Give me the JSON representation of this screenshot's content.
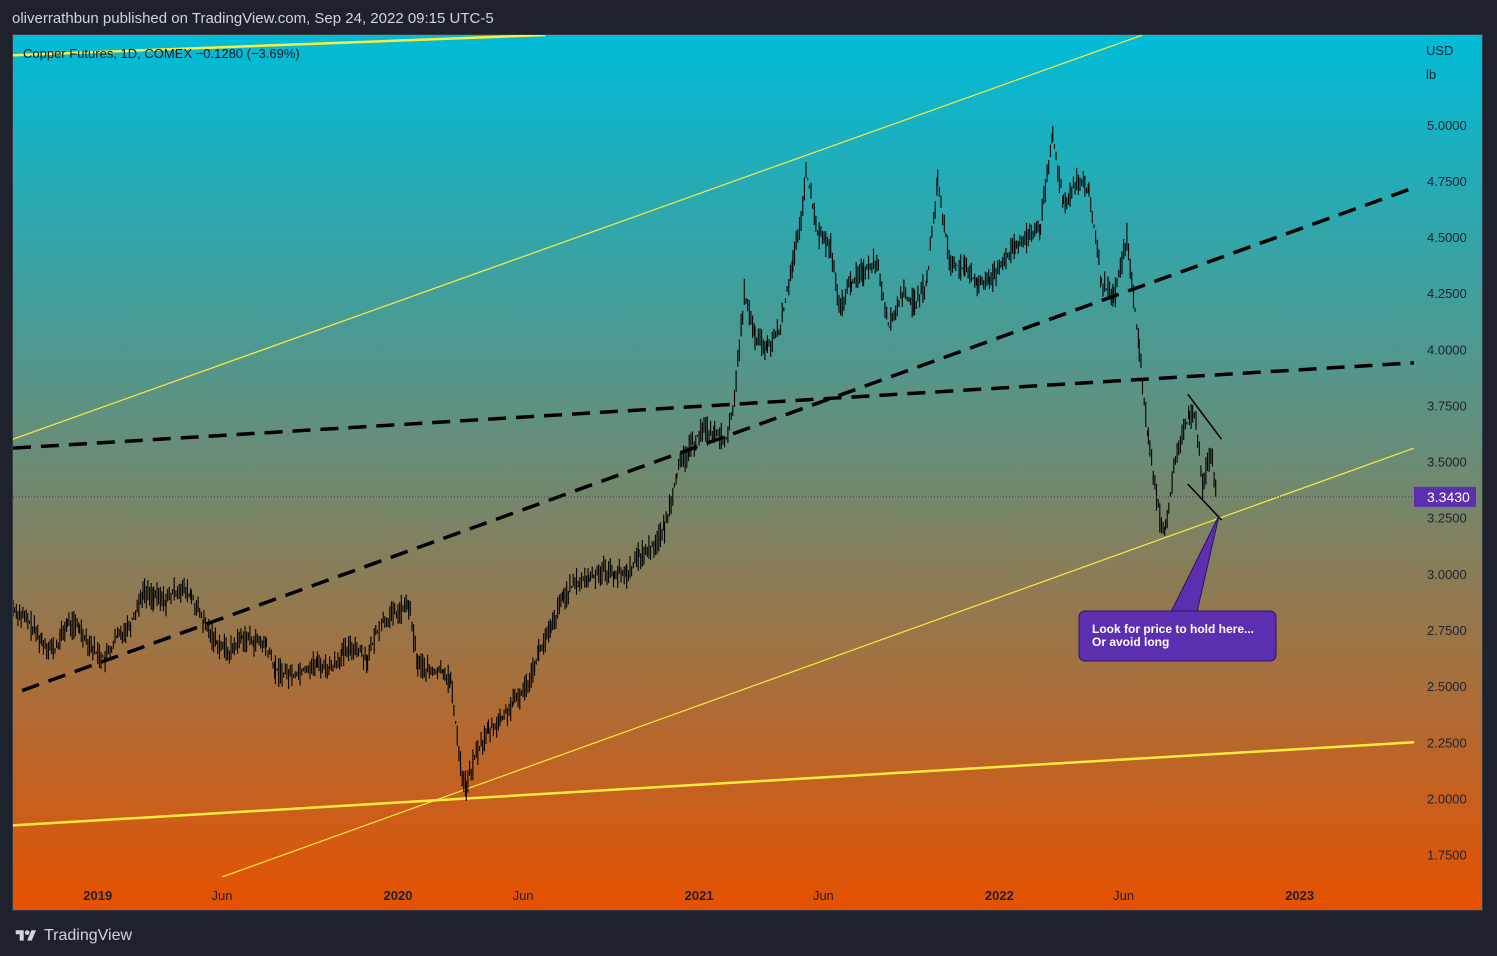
{
  "header": {
    "published_text": "oliverrathbun published on TradingView.com, Sep 24, 2022 09:15 UTC-5"
  },
  "symbol": {
    "info": "Copper Futures, 1D, COMEX  −0.1280 (−3.69%)"
  },
  "footer": {
    "brand": "TradingView",
    "logo_icon": "tradingview-logo-icon"
  },
  "colors": {
    "gradient_top": "#00bcd8",
    "gradient_middle": "#6e8a72",
    "gradient_bottom": "#e65100",
    "trendline_yellow": "#ffeb3b",
    "dashed_line": "#000000",
    "price_label_bg": "#5b2fb0",
    "callout_bg": "#5b2fb0",
    "price_series": "#000000"
  },
  "chart_data": {
    "type": "line",
    "title": "Copper Futures, 1D, COMEX",
    "currency": "USD",
    "unit": "lb",
    "last_price": 3.343,
    "last_price_label": "3.3430",
    "change": "−0.1280 (−3.69%)",
    "ylim": [
      1.65,
      5.4
    ],
    "y_ticks": [
      1.75,
      2.0,
      2.25,
      2.5,
      2.75,
      3.0,
      3.25,
      3.5,
      3.75,
      4.0,
      4.25,
      4.5,
      4.75,
      5.0
    ],
    "y_tick_labels": [
      "1.7500",
      "2.0000",
      "2.2500",
      "2.5000",
      "2.7500",
      "3.0000",
      "3.2500",
      "3.5000",
      "3.7500",
      "4.0000",
      "4.2500",
      "4.5000",
      "4.7500",
      "5.0000"
    ],
    "xlim": [
      "2018-09-20",
      "2023-05-20"
    ],
    "x_ticks": [
      {
        "date": "2019-01-01",
        "label": "2019",
        "bold": true
      },
      {
        "date": "2019-06-01",
        "label": "Jun",
        "bold": false
      },
      {
        "date": "2020-01-01",
        "label": "2020",
        "bold": true
      },
      {
        "date": "2020-06-01",
        "label": "Jun",
        "bold": false
      },
      {
        "date": "2021-01-01",
        "label": "2021",
        "bold": true
      },
      {
        "date": "2021-06-01",
        "label": "Jun",
        "bold": false
      },
      {
        "date": "2022-01-01",
        "label": "2022",
        "bold": true
      },
      {
        "date": "2022-06-01",
        "label": "Jun",
        "bold": false
      },
      {
        "date": "2023-01-01",
        "label": "2023",
        "bold": true
      }
    ],
    "series": [
      {
        "points": [
          [
            "2018-09-20",
            2.85
          ],
          [
            "2018-10-10",
            2.78
          ],
          [
            "2018-10-25",
            2.7
          ],
          [
            "2018-11-10",
            2.66
          ],
          [
            "2018-11-25",
            2.78
          ],
          [
            "2018-12-10",
            2.76
          ],
          [
            "2018-12-28",
            2.66
          ],
          [
            "2019-01-10",
            2.62
          ],
          [
            "2019-01-25",
            2.72
          ],
          [
            "2019-02-10",
            2.78
          ],
          [
            "2019-02-25",
            2.92
          ],
          [
            "2019-03-10",
            2.9
          ],
          [
            "2019-03-25",
            2.88
          ],
          [
            "2019-04-10",
            2.94
          ],
          [
            "2019-04-25",
            2.9
          ],
          [
            "2019-05-10",
            2.78
          ],
          [
            "2019-05-25",
            2.7
          ],
          [
            "2019-06-10",
            2.65
          ],
          [
            "2019-06-25",
            2.72
          ],
          [
            "2019-07-10",
            2.7
          ],
          [
            "2019-07-25",
            2.68
          ],
          [
            "2019-08-05",
            2.57
          ],
          [
            "2019-08-25",
            2.55
          ],
          [
            "2019-09-10",
            2.58
          ],
          [
            "2019-09-25",
            2.6
          ],
          [
            "2019-10-10",
            2.58
          ],
          [
            "2019-10-25",
            2.64
          ],
          [
            "2019-11-10",
            2.68
          ],
          [
            "2019-11-25",
            2.62
          ],
          [
            "2019-12-10",
            2.78
          ],
          [
            "2019-12-28",
            2.82
          ],
          [
            "2020-01-14",
            2.86
          ],
          [
            "2020-01-25",
            2.6
          ],
          [
            "2020-02-10",
            2.56
          ],
          [
            "2020-02-25",
            2.57
          ],
          [
            "2020-03-05",
            2.52
          ],
          [
            "2020-03-19",
            2.1
          ],
          [
            "2020-03-24",
            2.05
          ],
          [
            "2020-04-05",
            2.2
          ],
          [
            "2020-04-20",
            2.3
          ],
          [
            "2020-05-05",
            2.35
          ],
          [
            "2020-05-20",
            2.42
          ],
          [
            "2020-06-05",
            2.5
          ],
          [
            "2020-06-20",
            2.65
          ],
          [
            "2020-07-05",
            2.75
          ],
          [
            "2020-07-20",
            2.9
          ],
          [
            "2020-08-05",
            2.96
          ],
          [
            "2020-08-20",
            2.98
          ],
          [
            "2020-09-05",
            3.02
          ],
          [
            "2020-09-20",
            3.0
          ],
          [
            "2020-10-05",
            3.0
          ],
          [
            "2020-10-20",
            3.08
          ],
          [
            "2020-11-05",
            3.12
          ],
          [
            "2020-11-20",
            3.2
          ],
          [
            "2020-12-05",
            3.45
          ],
          [
            "2020-12-20",
            3.55
          ],
          [
            "2021-01-05",
            3.65
          ],
          [
            "2021-01-20",
            3.62
          ],
          [
            "2021-02-05",
            3.6
          ],
          [
            "2021-02-15",
            3.85
          ],
          [
            "2021-02-25",
            4.25
          ],
          [
            "2021-03-10",
            4.05
          ],
          [
            "2021-03-25",
            4.0
          ],
          [
            "2021-04-10",
            4.1
          ],
          [
            "2021-04-25",
            4.4
          ],
          [
            "2021-05-05",
            4.55
          ],
          [
            "2021-05-11",
            4.8
          ],
          [
            "2021-05-25",
            4.52
          ],
          [
            "2021-06-10",
            4.45
          ],
          [
            "2021-06-20",
            4.18
          ],
          [
            "2021-07-05",
            4.3
          ],
          [
            "2021-07-20",
            4.35
          ],
          [
            "2021-08-05",
            4.4
          ],
          [
            "2021-08-20",
            4.1
          ],
          [
            "2021-09-05",
            4.25
          ],
          [
            "2021-09-20",
            4.2
          ],
          [
            "2021-10-05",
            4.3
          ],
          [
            "2021-10-18",
            4.75
          ],
          [
            "2021-11-01",
            4.4
          ],
          [
            "2021-11-20",
            4.35
          ],
          [
            "2021-12-05",
            4.3
          ],
          [
            "2021-12-20",
            4.3
          ],
          [
            "2022-01-05",
            4.4
          ],
          [
            "2022-01-20",
            4.45
          ],
          [
            "2022-02-05",
            4.5
          ],
          [
            "2022-02-20",
            4.55
          ],
          [
            "2022-03-07",
            4.95
          ],
          [
            "2022-03-20",
            4.65
          ],
          [
            "2022-04-05",
            4.75
          ],
          [
            "2022-04-20",
            4.7
          ],
          [
            "2022-05-05",
            4.3
          ],
          [
            "2022-05-20",
            4.22
          ],
          [
            "2022-06-05",
            4.5
          ],
          [
            "2022-06-20",
            4.0
          ],
          [
            "2022-07-01",
            3.6
          ],
          [
            "2022-07-15",
            3.25
          ],
          [
            "2022-07-22",
            3.2
          ],
          [
            "2022-08-05",
            3.55
          ],
          [
            "2022-08-20",
            3.7
          ],
          [
            "2022-08-26",
            3.72
          ],
          [
            "2022-09-05",
            3.4
          ],
          [
            "2022-09-15",
            3.55
          ],
          [
            "2022-09-23",
            3.343
          ]
        ]
      }
    ],
    "trendlines": [
      {
        "style": "solid",
        "color": "#ffeb3b",
        "from": [
          "2018-09-20",
          5.31
        ],
        "to": [
          "2020-06-28",
          5.4
        ]
      },
      {
        "style": "solid",
        "color": "#ffeb3b",
        "from": [
          "2018-09-20",
          3.6
        ],
        "to": [
          "2022-06-24",
          5.4
        ]
      },
      {
        "style": "solid",
        "color": "#ffeb3b",
        "from": [
          "2019-06-01",
          1.65
        ],
        "to": [
          "2023-05-20",
          3.56
        ]
      },
      {
        "style": "solid",
        "color": "#ffeb3b",
        "from": [
          "2018-09-20",
          1.88
        ],
        "to": [
          "2023-05-20",
          2.25
        ]
      },
      {
        "style": "dashed",
        "color": "#000000",
        "from": [
          "2018-09-20",
          3.56
        ],
        "to": [
          "2023-05-20",
          3.94
        ]
      },
      {
        "style": "dashed",
        "color": "#000000",
        "from": [
          "2018-10-01",
          2.48
        ],
        "to": [
          "2023-05-20",
          4.72
        ]
      },
      {
        "style": "solid",
        "color": "#000000",
        "from": [
          "2022-08-18",
          3.8
        ],
        "to": [
          "2022-09-28",
          3.6
        ]
      },
      {
        "style": "solid",
        "color": "#000000",
        "from": [
          "2022-08-18",
          3.4
        ],
        "to": [
          "2022-09-28",
          3.24
        ]
      }
    ],
    "annotation": {
      "text_line1": "Look for price to hold here...",
      "text_line2": "Or avoid long",
      "pointer_to": [
        "2022-09-25",
        3.26
      ]
    }
  }
}
